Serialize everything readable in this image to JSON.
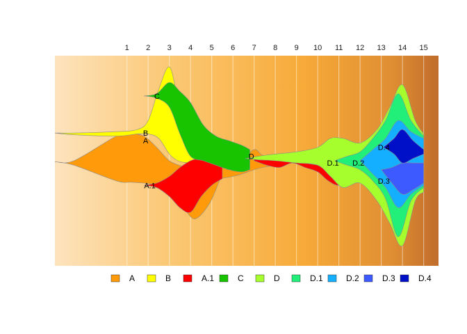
{
  "chart_data": {
    "type": "area",
    "x_ticks": [
      1,
      2,
      3,
      4,
      5,
      6,
      7,
      8,
      9,
      10,
      11,
      12,
      13,
      14,
      15
    ],
    "x_range": [
      -2.4,
      15.7
    ],
    "y_range": [
      -2.35,
      2.35
    ],
    "grid": "vertical",
    "legend_position": "bottom",
    "background": {
      "gradient": [
        "#fde3bd",
        "#fbc874",
        "#f7aa38",
        "#e08e33",
        "#c06c2c"
      ]
    },
    "series": [
      {
        "name": "A",
        "color": "#ff9a0a",
        "label_x": 2.0,
        "label_y": 0.45
      },
      {
        "name": "B",
        "color": "#ffff00",
        "label_x": 2.0,
        "label_y": 0.62
      },
      {
        "name": "A.1",
        "color": "#ff0000",
        "label_x": 2.35,
        "label_y": -0.55
      },
      {
        "name": "C",
        "color": "#18c400",
        "label_x": 2.55,
        "label_y": 1.45
      },
      {
        "name": "D",
        "color": "#a6ff2c",
        "label_x": 7.0,
        "label_y": 0.1
      },
      {
        "name": "D.1",
        "color": "#22ee7a",
        "label_x": 11.0,
        "label_y": -0.05
      },
      {
        "name": "D.2",
        "color": "#14b0ff",
        "label_x": 12.2,
        "label_y": -0.05
      },
      {
        "name": "D.3",
        "color": "#3c5aff",
        "label_x": 13.4,
        "label_y": -0.45
      },
      {
        "name": "D.4",
        "color": "#0010c8",
        "label_x": 13.4,
        "label_y": 0.3
      }
    ],
    "layers": [
      {
        "series": "A",
        "segments": [
          {
            "x": [
              -2.4,
              -1.5,
              0.5,
              1.2,
              1.8,
              2.4,
              3.0,
              3.6,
              4.2,
              4.9,
              5.4
            ],
            "top": [
              -0.02,
              0.0,
              0.55,
              0.6,
              0.55,
              0.3,
              0.0,
              -0.12,
              -0.18,
              -0.15,
              -0.1
            ],
            "bottom": [
              -0.02,
              -0.1,
              -0.45,
              -0.48,
              -0.5,
              -0.55,
              -0.7,
              -1.0,
              -1.3,
              -0.95,
              -0.4
            ]
          },
          {
            "x": [
              5.4,
              6.0,
              6.4,
              7.0,
              7.4,
              8.0
            ],
            "top": [
              -0.1,
              -0.08,
              0.0,
              0.25,
              0.12,
              0.05
            ],
            "bottom": [
              -0.4,
              -0.35,
              -0.3,
              -0.2,
              -0.15,
              -0.1
            ]
          }
        ]
      },
      {
        "series": "B",
        "segments": [
          {
            "x": [
              -2.4,
              -1.5,
              0.5,
              1.5,
              2.0,
              2.5,
              3.0,
              3.4,
              3.9,
              4.4,
              5.0
            ],
            "top": [
              0.62,
              0.62,
              0.65,
              0.7,
              0.9,
              1.6,
              2.1,
              1.4,
              0.6,
              0.3,
              0.15
            ],
            "bottom": [
              0.62,
              0.58,
              0.55,
              0.6,
              0.6,
              0.5,
              0.15,
              0.0,
              -0.05,
              -0.05,
              -0.05
            ]
          }
        ]
      },
      {
        "series": "A.1",
        "segments": [
          {
            "x": [
              1.8,
              2.4,
              3.0,
              3.5,
              4.0,
              4.5,
              5.0,
              5.5
            ],
            "top": [
              -0.55,
              -0.5,
              -0.35,
              -0.15,
              0.0,
              0.05,
              0.0,
              -0.1
            ],
            "bottom": [
              -0.55,
              -0.6,
              -0.8,
              -1.05,
              -1.15,
              -0.8,
              -0.55,
              -0.4
            ]
          },
          {
            "x": [
              7.0,
              7.6,
              8.2,
              8.8,
              9.4,
              10.0,
              10.5,
              11.0,
              11.5
            ],
            "top": [
              0.05,
              0.1,
              0.1,
              0.02,
              -0.05,
              -0.1,
              -0.15,
              -0.2,
              -0.25
            ],
            "bottom": [
              0.0,
              -0.1,
              -0.15,
              -0.05,
              -0.15,
              -0.25,
              -0.45,
              -0.55,
              -0.4
            ]
          }
        ]
      },
      {
        "series": "C",
        "segments": [
          {
            "x": [
              1.8,
              2.4,
              3.0,
              3.5,
              4.0,
              4.6,
              5.2,
              5.8,
              6.4,
              6.8
            ],
            "top": [
              1.45,
              1.5,
              1.75,
              1.55,
              1.3,
              0.8,
              0.55,
              0.45,
              0.35,
              0.25
            ],
            "bottom": [
              1.45,
              1.4,
              1.2,
              0.6,
              0.1,
              0.0,
              -0.1,
              -0.2,
              -0.25,
              -0.2
            ]
          }
        ]
      },
      {
        "series": "D",
        "segments": [
          {
            "x": [
              6.6,
              7.2,
              8.0,
              9.0,
              10.0,
              10.6,
              11.2,
              12.0,
              12.8,
              13.4,
              14.0,
              14.6,
              15.0
            ],
            "top": [
              0.05,
              0.1,
              0.15,
              0.2,
              0.3,
              0.5,
              0.5,
              0.4,
              0.7,
              1.2,
              1.7,
              0.9,
              0.6
            ],
            "bottom": [
              0.05,
              0.02,
              0.0,
              -0.05,
              -0.1,
              -0.35,
              -0.6,
              -0.5,
              -0.9,
              -1.4,
              -1.9,
              -0.9,
              -0.7
            ]
          }
        ]
      },
      {
        "series": "D.1",
        "segments": [
          {
            "x": [
              10.8,
              11.4,
              12.0,
              12.6,
              13.2,
              13.8,
              14.4,
              15.0
            ],
            "top": [
              0.0,
              0.1,
              0.2,
              0.5,
              0.9,
              1.5,
              0.9,
              0.55
            ],
            "bottom": [
              0.0,
              -0.1,
              -0.2,
              -0.45,
              -0.85,
              -1.7,
              -0.9,
              -0.6
            ]
          }
        ]
      },
      {
        "series": "D.2",
        "segments": [
          {
            "x": [
              12.0,
              12.6,
              13.2,
              13.8,
              14.4,
              15.0
            ],
            "top": [
              0.0,
              0.25,
              0.5,
              0.9,
              0.65,
              0.5
            ],
            "bottom": [
              0.0,
              -0.3,
              -0.6,
              -1.05,
              -0.75,
              -0.55
            ]
          }
        ]
      },
      {
        "series": "D.3",
        "segments": [
          {
            "x": [
              13.0,
              13.5,
              14.0,
              14.5,
              15.0
            ],
            "top": [
              -0.2,
              -0.15,
              -0.05,
              -0.05,
              -0.05
            ],
            "bottom": [
              -0.2,
              -0.5,
              -0.75,
              -0.65,
              -0.5
            ]
          }
        ]
      },
      {
        "series": "D.4",
        "segments": [
          {
            "x": [
              13.1,
              13.6,
              14.0,
              14.5,
              15.0
            ],
            "top": [
              0.3,
              0.5,
              0.7,
              0.45,
              0.25
            ],
            "bottom": [
              0.3,
              0.15,
              -0.05,
              0.05,
              0.15
            ]
          }
        ]
      }
    ]
  }
}
